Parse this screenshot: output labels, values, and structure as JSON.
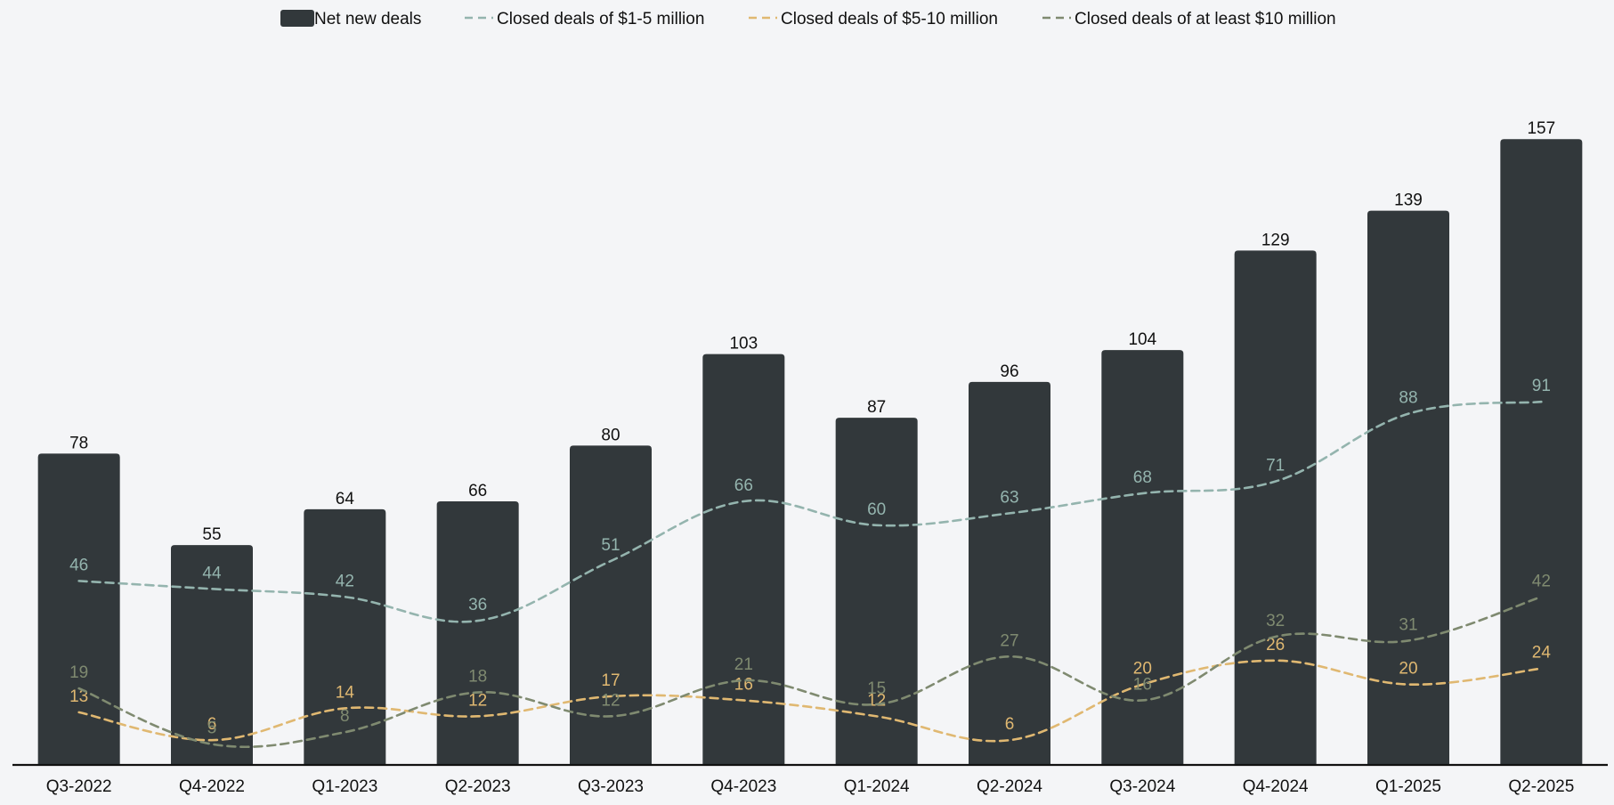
{
  "chart_data": {
    "type": "bar",
    "title": "",
    "xlabel": "",
    "ylabel": "",
    "ylim": [
      0,
      170
    ],
    "grid": false,
    "legend": "top-center",
    "categories": [
      "Q3-2022",
      "Q4-2022",
      "Q1-2023",
      "Q2-2023",
      "Q3-2023",
      "Q4-2023",
      "Q1-2024",
      "Q2-2024",
      "Q3-2024",
      "Q4-2024",
      "Q1-2025",
      "Q2-2025"
    ],
    "bar_series": {
      "name": "Net new deals",
      "values": [
        78,
        55,
        64,
        66,
        80,
        103,
        87,
        96,
        104,
        129,
        139,
        157
      ],
      "color": "#32383b"
    },
    "line_series": [
      {
        "name": "Closed deals of $1-5 million",
        "type": "line",
        "style": "dashed",
        "color": "#94b4ae",
        "values": [
          46,
          44,
          42,
          36,
          51,
          66,
          60,
          63,
          68,
          71,
          88,
          91
        ]
      },
      {
        "name": "Closed deals of $5-10 million",
        "type": "line",
        "style": "dashed",
        "color": "#e0b871",
        "values": [
          13,
          6,
          14,
          12,
          17,
          16,
          12,
          6,
          20,
          26,
          20,
          24
        ]
      },
      {
        "name": "Closed deals of at least $10 million",
        "type": "line",
        "style": "dashed",
        "color": "#7f8a70",
        "values": [
          19,
          5,
          8,
          18,
          12,
          21,
          15,
          27,
          16,
          32,
          31,
          42
        ]
      }
    ]
  }
}
